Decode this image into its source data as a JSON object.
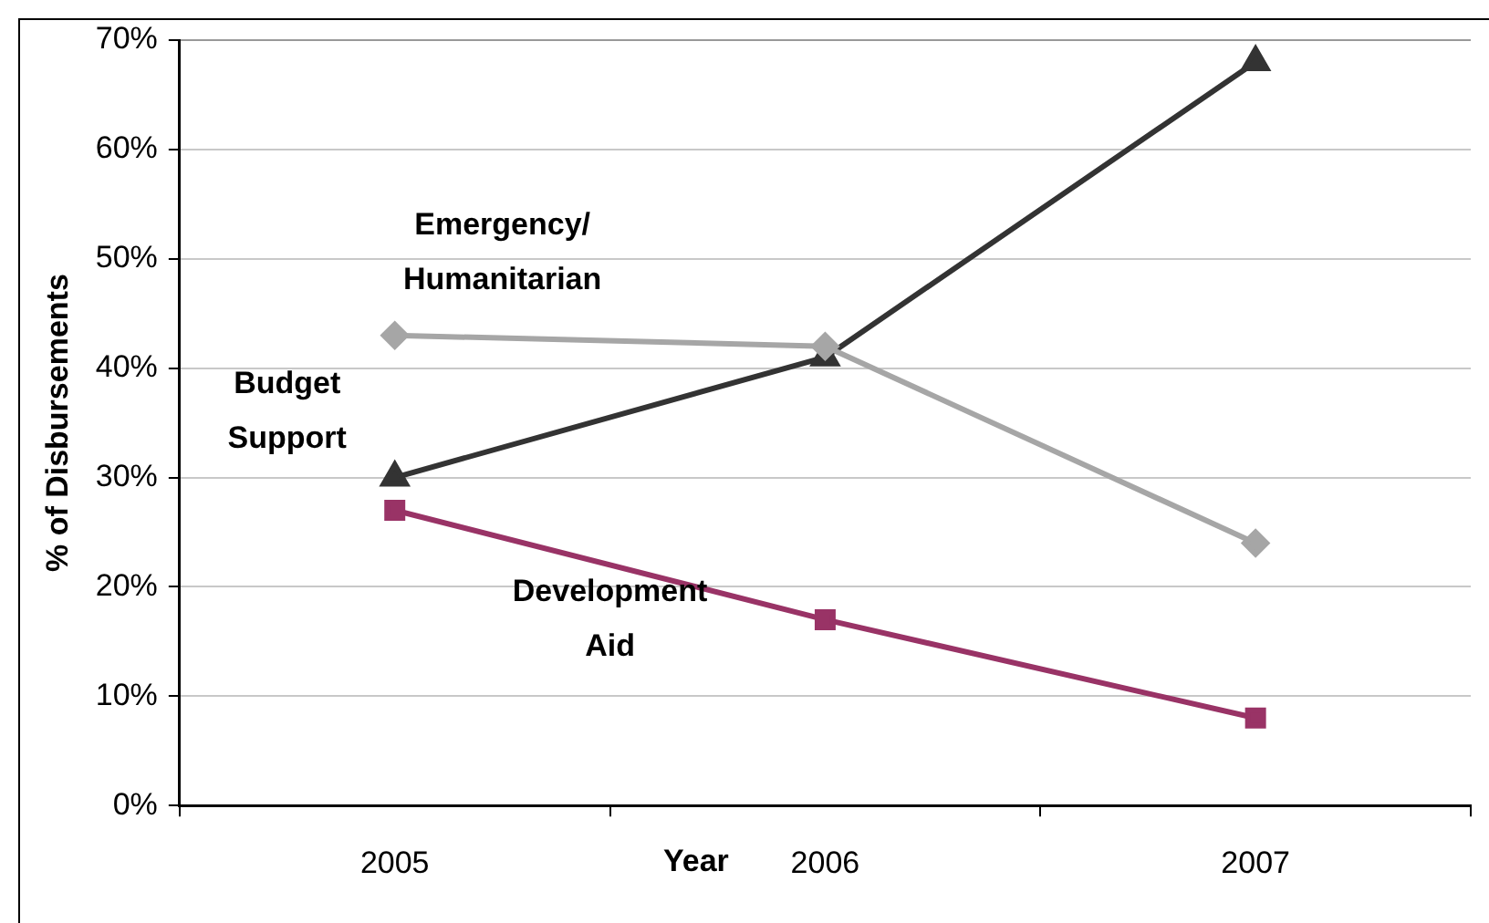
{
  "chart_data": {
    "type": "line",
    "xlabel": "Year",
    "ylabel": "% of Disbursements",
    "categories": [
      "2005",
      "2006",
      "2007"
    ],
    "series": [
      {
        "name": "Emergency/ Humanitarian",
        "color": "#a6a6a6",
        "marker": "diamond",
        "values": [
          43,
          42,
          24
        ]
      },
      {
        "name": "Budget Support",
        "color": "#333333",
        "marker": "triangle",
        "values": [
          30,
          41,
          68
        ]
      },
      {
        "name": "Development Aid",
        "color": "#993366",
        "marker": "square",
        "values": [
          27,
          17,
          8
        ]
      }
    ],
    "ylim": [
      0,
      70
    ],
    "yticks": [
      {
        "value": 0,
        "label": "0%"
      },
      {
        "value": 10,
        "label": "10%"
      },
      {
        "value": 20,
        "label": "20%"
      },
      {
        "value": 30,
        "label": "30%"
      },
      {
        "value": 40,
        "label": "40%"
      },
      {
        "value": 50,
        "label": "50%"
      },
      {
        "value": 60,
        "label": "60%"
      },
      {
        "value": 70,
        "label": "70%"
      }
    ],
    "grid": "y",
    "legend": false
  }
}
